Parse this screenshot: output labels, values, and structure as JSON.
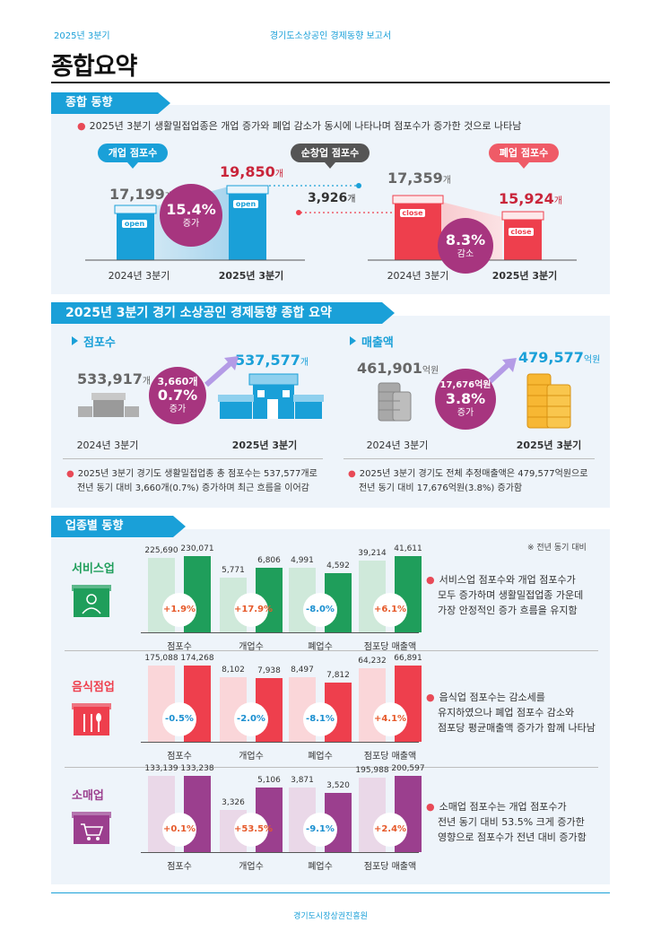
{
  "header": {
    "quarter": "2025년 3분기",
    "report": "경기도소상공인 경제동향 보고서"
  },
  "page_title": "종합요약",
  "sec1": {
    "tab": "종합 동향",
    "bullet": "2025년 3분기 생활밀접업종은 개업 증가와 폐업 감소가 동시에 나타나며 점포수가 증가한 것으로 나타남",
    "open_pill": "개업 점포수",
    "net_pill": "순창업 점포수",
    "close_pill": "폐업 점포수",
    "open_prev": "17,199",
    "open_curr": "19,850",
    "open_pct": "15.4%",
    "open_dir": "증가",
    "net_val": "3,926",
    "close_prev": "17,359",
    "close_curr": "15,924",
    "close_pct": "8.3%",
    "close_dir": "감소",
    "unit": "개",
    "open_sign": "open",
    "close_sign": "close",
    "lbl_prev": "2024년 3분기",
    "lbl_curr": "2025년 3분기"
  },
  "sec2": {
    "tab": "2025년 3분기 경기 소상공인 경제동향 종합 요약",
    "stores": {
      "head": "점포수",
      "prev": "533,917",
      "curr": "537,577",
      "unit": "개",
      "diff": "3,660개",
      "pct": "0.7%",
      "dir": "증가",
      "lbl_prev": "2024년 3분기",
      "lbl_curr": "2025년 3분기",
      "note1": "2025년 3분기 경기도 생활밀접업종 총 점포수는 537,577개로",
      "note2": "전년 동기 대비 3,660개(0.7%) 증가하며 최근 흐름을 이어감"
    },
    "sales": {
      "head": "매출액",
      "prev": "461,901",
      "curr": "479,577",
      "unit": "억원",
      "diff": "17,676억원",
      "pct": "3.8%",
      "dir": "증가",
      "lbl_prev": "2024년 3분기",
      "lbl_curr": "2025년 3분기",
      "note1": "2025년 3분기 경기도 전체 추정매출액은 479,577억원으로",
      "note2": "전년 동기 대비 17,676억원(3.8%) 증가함"
    }
  },
  "sec3": {
    "tab": "업종별 동향",
    "footnote": "※ 전년 동기 대비",
    "categories": [
      "점포수",
      "개업수",
      "폐업수",
      "점포당 매출액"
    ],
    "industries": [
      {
        "name": "서비스업",
        "color": "#1f9e5b",
        "light": "#cfe9da",
        "pairs": [
          [
            225690,
            230071
          ],
          [
            5771,
            6806
          ],
          [
            4991,
            4592
          ],
          [
            39214,
            41611
          ]
        ],
        "labels": [
          [
            "225,690",
            "230,071"
          ],
          [
            "5,771",
            "6,806"
          ],
          [
            "4,991",
            "4,592"
          ],
          [
            "39,214",
            "41,611"
          ]
        ],
        "pcts": [
          "+1.9%",
          "+17.9%",
          "-8.0%",
          "+6.1%"
        ],
        "lines": [
          "서비스업 점포수와 개업 점포수가",
          "모두 증가하며 생활밀접업종 가운데",
          "가장 안정적인 증가 흐름을 유지함"
        ]
      },
      {
        "name": "음식점업",
        "color": "#ee3f4d",
        "light": "#fad6d9",
        "pairs": [
          [
            175088,
            174268
          ],
          [
            8102,
            7938
          ],
          [
            8497,
            7812
          ],
          [
            64232,
            66891
          ]
        ],
        "labels": [
          [
            "175,088",
            "174,268"
          ],
          [
            "8,102",
            "7,938"
          ],
          [
            "8,497",
            "7,812"
          ],
          [
            "64,232",
            "66,891"
          ]
        ],
        "pcts": [
          "-0.5%",
          "-2.0%",
          "-8.1%",
          "+4.1%"
        ],
        "lines": [
          "음식업 점포수는 감소세를",
          "유지하였으나 폐업 점포수 감소와",
          "점포당 평균매출액 증가가 함께 나타남"
        ]
      },
      {
        "name": "소매업",
        "color": "#9b3f8e",
        "light": "#ead8e8",
        "pairs": [
          [
            133139,
            133238
          ],
          [
            3326,
            5106
          ],
          [
            3871,
            3520
          ],
          [
            195988,
            200597
          ]
        ],
        "labels": [
          [
            "133,139",
            "133,238"
          ],
          [
            "3,326",
            "5,106"
          ],
          [
            "3,871",
            "3,520"
          ],
          [
            "195,988",
            "200,597"
          ]
        ],
        "pcts": [
          "+0.1%",
          "+53.5%",
          "-9.1%",
          "+2.4%"
        ],
        "lines": [
          "소매업 점포수는 개업 점포수가",
          "전년 동기 대비 53.5% 크게 증가한",
          "영향으로 점포수가 전년 대비 증가함"
        ]
      }
    ]
  },
  "footer": "경기도시장상권진흥원"
}
